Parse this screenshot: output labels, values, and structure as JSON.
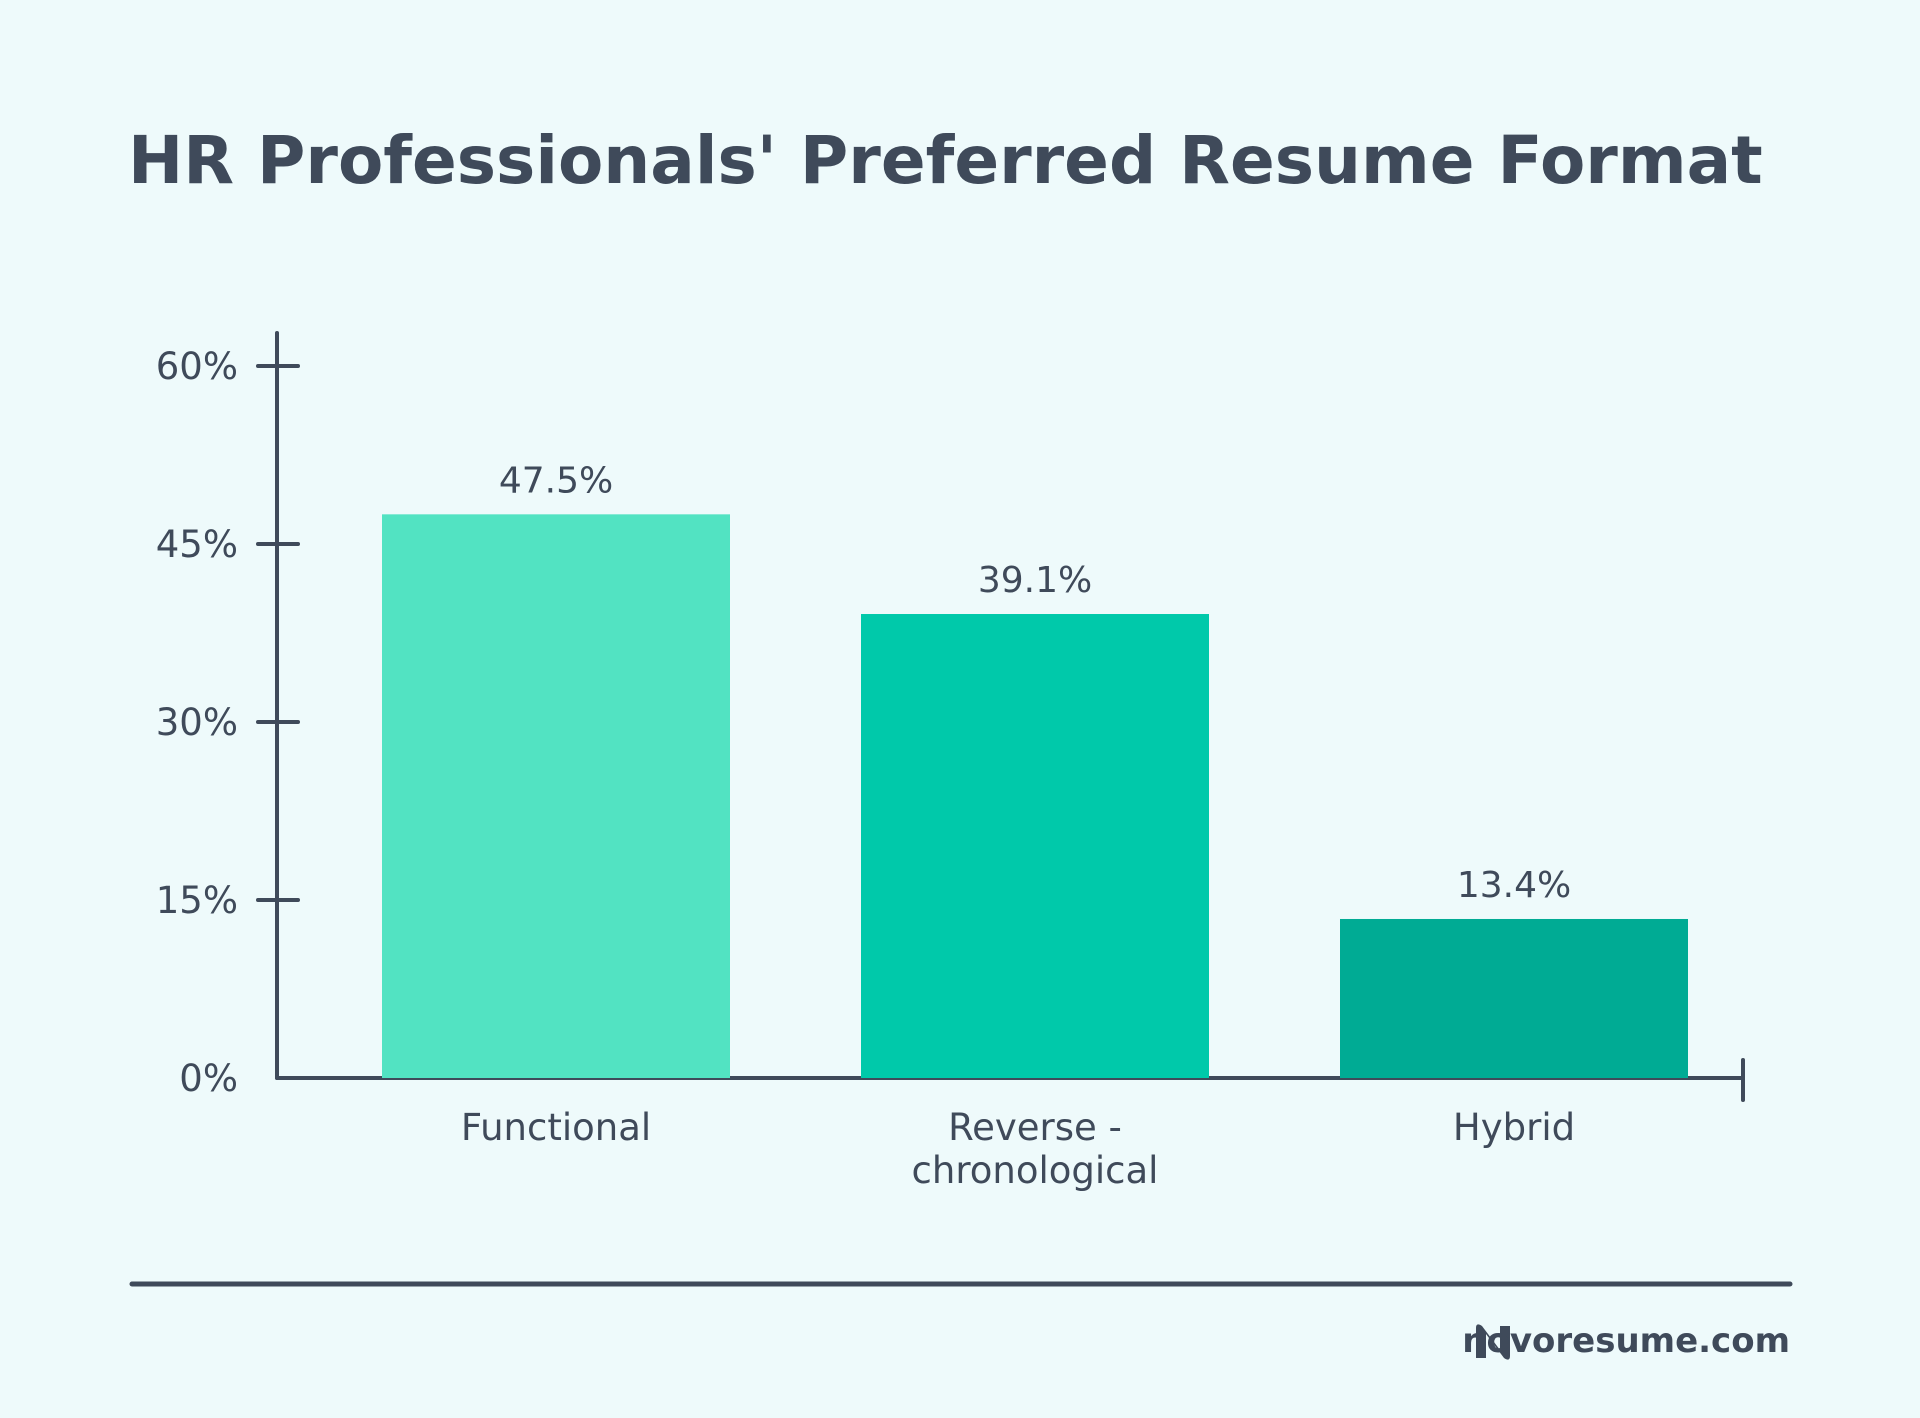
{
  "chart_data": {
    "type": "bar",
    "title": "HR Professionals' Preferred Resume Format",
    "categories": [
      [
        "Functional"
      ],
      [
        "Reverse -",
        "chronological"
      ],
      [
        "Hybrid"
      ]
    ],
    "values": [
      47.5,
      39.1,
      13.4
    ],
    "value_labels": [
      "47.5%",
      "39.1%",
      "13.4%"
    ],
    "bar_colors": [
      "#52e3c2",
      "#00c9aa",
      "#00ab94"
    ],
    "ylim": [
      0,
      60
    ],
    "yticks": [
      0,
      15,
      30,
      45,
      60
    ],
    "ytick_labels": [
      "0%",
      "15%",
      "30%",
      "45%",
      "60%"
    ],
    "xlabel": "",
    "ylabel": "",
    "grid": false,
    "legend": "none"
  },
  "footer": {
    "brand": "novoresume.com",
    "logo_icon": "novoresume-n-logo-icon"
  },
  "colors": {
    "background": "#eefafb",
    "text": "#3f4a5a",
    "axis": "#3f4a5a"
  }
}
